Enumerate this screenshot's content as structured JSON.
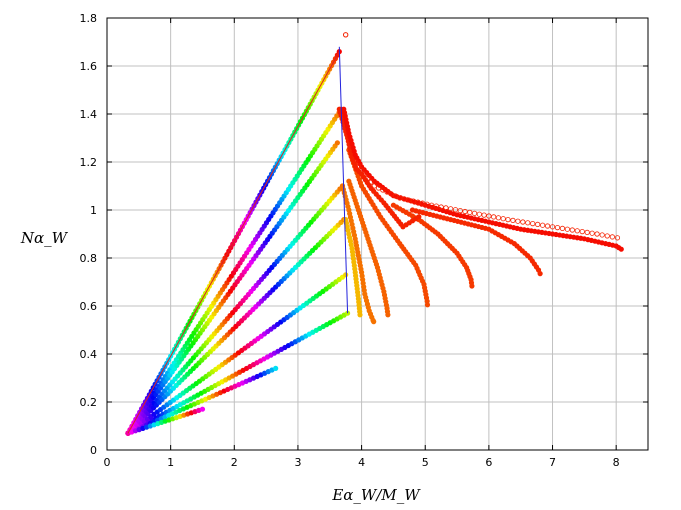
{
  "chart_data": {
    "type": "scatter",
    "title": "",
    "xlabel": "Eα_W/M_W",
    "ylabel": "Nα_W",
    "xlim": [
      0,
      8.5
    ],
    "ylim": [
      0,
      1.8
    ],
    "x_ticks": [
      "0",
      "1",
      "2",
      "3",
      "4",
      "5",
      "6",
      "7",
      "8"
    ],
    "y_ticks": [
      "0",
      "0.2",
      "0.4",
      "0.6",
      "0.8",
      "1",
      "1.2",
      "1.4",
      "1.6",
      "1.8"
    ],
    "grid": true,
    "legend": "none",
    "rays": [
      {
        "x_start": 0.33,
        "y_start": 0.07,
        "x_end": 3.65,
        "y_end": 1.66,
        "hue_start": 320,
        "hue_end": 0
      },
      {
        "x_start": 0.33,
        "y_start": 0.07,
        "x_end": 3.68,
        "y_end": 1.42,
        "hue_start": 320,
        "hue_end": 18
      },
      {
        "x_start": 0.33,
        "y_start": 0.07,
        "x_end": 3.62,
        "y_end": 1.28,
        "hue_start": 320,
        "hue_end": 28
      },
      {
        "x_start": 0.33,
        "y_start": 0.07,
        "x_end": 3.7,
        "y_end": 1.1,
        "hue_start": 320,
        "hue_end": 22
      },
      {
        "x_start": 0.33,
        "y_start": 0.07,
        "x_end": 3.72,
        "y_end": 0.96,
        "hue_start": 320,
        "hue_end": 32
      },
      {
        "x_start": 0.33,
        "y_start": 0.07,
        "x_end": 3.75,
        "y_end": 0.73,
        "hue_start": 320,
        "hue_end": 52
      },
      {
        "x_start": 0.33,
        "y_start": 0.07,
        "x_end": 3.78,
        "y_end": 0.57,
        "hue_start": 320,
        "hue_end": 75
      },
      {
        "x_start": 0.33,
        "y_start": 0.07,
        "x_end": 2.65,
        "y_end": 0.34,
        "hue_start": 320,
        "hue_end": 185
      },
      {
        "x_start": 0.33,
        "y_start": 0.07,
        "x_end": 1.5,
        "y_end": 0.17,
        "hue_start": 320,
        "hue_end": 300
      }
    ],
    "branches": [
      {
        "x": [
          3.7,
          3.8,
          3.9,
          4.0,
          4.05,
          4.12,
          4.18,
          4.2
        ],
        "y": [
          1.1,
          1.0,
          0.88,
          0.74,
          0.65,
          0.58,
          0.54,
          0.53
        ],
        "hue": 28
      },
      {
        "x": [
          3.8,
          3.95,
          4.1,
          4.25,
          4.35,
          4.4,
          4.42
        ],
        "y": [
          1.12,
          1.0,
          0.88,
          0.76,
          0.66,
          0.59,
          0.55
        ],
        "hue": 24
      },
      {
        "x": [
          3.75,
          3.85,
          3.9,
          3.95,
          3.98
        ],
        "y": [
          0.96,
          0.84,
          0.74,
          0.63,
          0.55
        ],
        "hue": 45
      },
      {
        "x": [
          3.8,
          4.0,
          4.3,
          4.6,
          4.85,
          4.98,
          5.03,
          5.04
        ],
        "y": [
          1.25,
          1.1,
          0.97,
          0.86,
          0.77,
          0.69,
          0.62,
          0.59
        ],
        "hue": 18
      },
      {
        "x": [
          4.5,
          4.9,
          5.2,
          5.5,
          5.65,
          5.72,
          5.74
        ],
        "y": [
          1.02,
          0.96,
          0.9,
          0.82,
          0.76,
          0.71,
          0.67
        ],
        "hue": 14
      },
      {
        "x": [
          4.8,
          5.4,
          6.0,
          6.4,
          6.65,
          6.78,
          6.83
        ],
        "y": [
          1.0,
          0.96,
          0.92,
          0.86,
          0.8,
          0.75,
          0.72
        ],
        "hue": 10
      },
      {
        "x": [
          3.65,
          3.78,
          3.85,
          3.92,
          4.0,
          4.15,
          4.35,
          4.65,
          4.95
        ],
        "y": [
          1.42,
          1.3,
          1.22,
          1.17,
          1.15,
          1.09,
          1.03,
          0.93,
          0.98
        ],
        "hue": 8
      },
      {
        "x": [
          3.72,
          3.8,
          3.9,
          4.0,
          4.2,
          4.5,
          5.0,
          5.5,
          6.0,
          6.5,
          7.0,
          7.5,
          8.0,
          8.12
        ],
        "y": [
          1.42,
          1.32,
          1.23,
          1.18,
          1.12,
          1.06,
          1.02,
          0.98,
          0.95,
          0.92,
          0.9,
          0.88,
          0.85,
          0.83
        ],
        "hue": 3
      }
    ],
    "upper_points": {
      "x": [
        3.75,
        3.9,
        4.2,
        4.6,
        5.1,
        5.7,
        6.3,
        7.0,
        7.7,
        8.1
      ],
      "y": [
        1.73,
        1.2,
        1.1,
        1.05,
        1.02,
        0.99,
        0.96,
        0.93,
        0.9,
        0.88
      ],
      "hue": 8
    },
    "envelope_line": {
      "x": [
        0.33,
        3.65
      ],
      "y": [
        0.07,
        1.66
      ],
      "color": "#dd2222"
    },
    "blue_line": {
      "x": [
        3.65,
        3.78
      ],
      "y": [
        1.68,
        0.57
      ],
      "color": "#2222dd"
    }
  }
}
